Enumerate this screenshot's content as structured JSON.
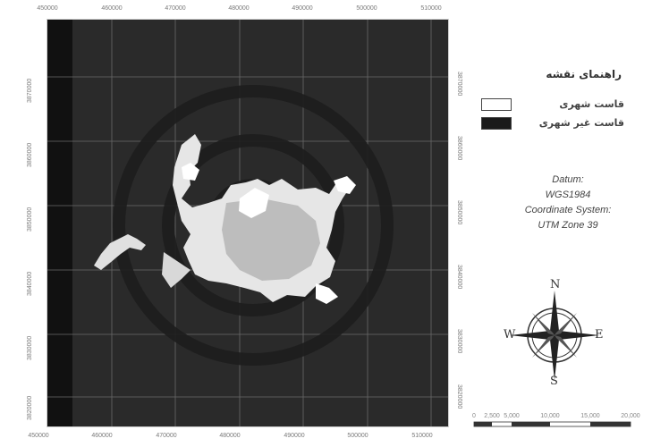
{
  "map": {
    "x_ticks_top": [
      "450000",
      "460000",
      "470000",
      "480000",
      "490000",
      "500000",
      "510000"
    ],
    "x_ticks_bottom": [
      "450000",
      "460000",
      "470000",
      "480000",
      "490000",
      "500000",
      "510000"
    ],
    "y_ticks_left": [
      "3870000",
      "3860000",
      "3850000",
      "3840000",
      "3830000",
      "3820000"
    ],
    "y_ticks_right": [
      "3870000",
      "3860000",
      "3850000",
      "3840000",
      "3830000",
      "3820000"
    ],
    "background_color": "#2a2a2a",
    "urban_color": "#ffffff"
  },
  "legend": {
    "title": "راهنمای نقشه",
    "items": [
      {
        "label": "قاست شهری",
        "color": "#ffffff"
      },
      {
        "label": "قاست غیر شهری",
        "color": "#1a1a1a"
      }
    ]
  },
  "info": {
    "datum_label": "Datum:",
    "datum_value": "WGS1984",
    "coord_label": "Coordinate System:",
    "coord_value": "UTM Zone 39"
  },
  "north_arrow": {
    "n": "N",
    "s": "S",
    "e": "E",
    "w": "W"
  },
  "scale_bar": {
    "labels": [
      "0",
      "2,500",
      "5,000",
      "10,000",
      "15,000",
      "20,000"
    ]
  }
}
